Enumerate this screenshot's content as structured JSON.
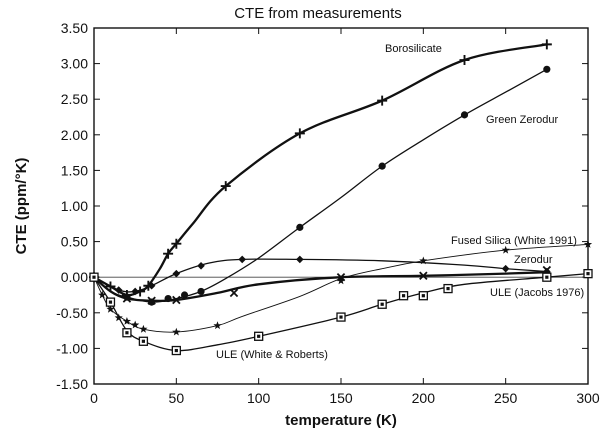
{
  "chart_data": {
    "type": "line",
    "title": "CTE from measurements",
    "xlabel": "temperature (K)",
    "ylabel": "CTE  (ppm/°K)",
    "xlim": [
      0,
      300
    ],
    "ylim": [
      -1.5,
      3.5
    ],
    "xticks": [
      0,
      50,
      100,
      150,
      200,
      250,
      300
    ],
    "xtick_labels": [
      "0",
      "50",
      "100",
      "150",
      "200",
      "250",
      "300"
    ],
    "yticks": [
      -1.5,
      -1.0,
      -0.5,
      0.0,
      0.5,
      1.0,
      1.5,
      2.0,
      2.5,
      3.0,
      3.5
    ],
    "ytick_labels": [
      "-1.50",
      "-1.00",
      "-0.50",
      "0.00",
      "0.50",
      "1.00",
      "1.50",
      "2.00",
      "2.50",
      "3.00",
      "3.50"
    ],
    "grid": false,
    "legend": "none",
    "series": [
      {
        "name": "Borosilicate",
        "label": "Borosilicate",
        "marker": "plus",
        "color": "#111111",
        "weight": "heavy",
        "points": [
          [
            0,
            0.0
          ],
          [
            10,
            -0.13
          ],
          [
            20,
            -0.25
          ],
          [
            28,
            -0.2
          ],
          [
            33,
            -0.12
          ],
          [
            40,
            0.12
          ],
          [
            45,
            0.33
          ],
          [
            50,
            0.47
          ],
          [
            60,
            0.75
          ],
          [
            80,
            1.28
          ],
          [
            125,
            2.02
          ],
          [
            175,
            2.48
          ],
          [
            225,
            3.05
          ],
          [
            275,
            3.27
          ]
        ],
        "markers": [
          [
            0,
            0.0
          ],
          [
            10,
            -0.13
          ],
          [
            20,
            -0.25
          ],
          [
            28,
            -0.2
          ],
          [
            33,
            -0.12
          ],
          [
            45,
            0.33
          ],
          [
            50,
            0.47
          ],
          [
            80,
            1.28
          ],
          [
            125,
            2.02
          ],
          [
            175,
            2.48
          ],
          [
            225,
            3.05
          ],
          [
            275,
            3.27
          ]
        ]
      },
      {
        "name": "Green Zerodur",
        "label": "Green Zerodur",
        "marker": "circle",
        "color": "#111111",
        "weight": "normal",
        "points": [
          [
            0,
            0.0
          ],
          [
            10,
            -0.2
          ],
          [
            20,
            -0.28
          ],
          [
            35,
            -0.35
          ],
          [
            50,
            -0.3
          ],
          [
            65,
            -0.2
          ],
          [
            80,
            -0.02
          ],
          [
            100,
            0.27
          ],
          [
            125,
            0.7
          ],
          [
            150,
            1.12
          ],
          [
            175,
            1.56
          ],
          [
            200,
            1.93
          ],
          [
            225,
            2.28
          ],
          [
            250,
            2.6
          ],
          [
            275,
            2.92
          ]
        ],
        "markers": [
          [
            0,
            0.0
          ],
          [
            20,
            -0.28
          ],
          [
            35,
            -0.35
          ],
          [
            45,
            -0.3
          ],
          [
            55,
            -0.25
          ],
          [
            65,
            -0.2
          ],
          [
            125,
            0.7
          ],
          [
            175,
            1.56
          ],
          [
            225,
            2.28
          ],
          [
            275,
            2.92
          ]
        ]
      },
      {
        "name": "Fused Silica (White 1991)",
        "label": "Fused Silica (White 1991)",
        "marker": "star",
        "color": "#111111",
        "weight": "thin",
        "points": [
          [
            0,
            0.0
          ],
          [
            5,
            -0.25
          ],
          [
            10,
            -0.45
          ],
          [
            20,
            -0.62
          ],
          [
            30,
            -0.73
          ],
          [
            50,
            -0.77
          ],
          [
            75,
            -0.68
          ],
          [
            90,
            -0.55
          ],
          [
            125,
            -0.27
          ],
          [
            150,
            -0.02
          ],
          [
            175,
            0.12
          ],
          [
            200,
            0.23
          ],
          [
            250,
            0.38
          ],
          [
            300,
            0.46
          ]
        ],
        "markers": [
          [
            5,
            -0.25
          ],
          [
            10,
            -0.45
          ],
          [
            15,
            -0.57
          ],
          [
            20,
            -0.62
          ],
          [
            25,
            -0.67
          ],
          [
            30,
            -0.73
          ],
          [
            50,
            -0.77
          ],
          [
            75,
            -0.68
          ],
          [
            150,
            -0.05
          ],
          [
            200,
            0.23
          ],
          [
            250,
            0.38
          ],
          [
            300,
            0.46
          ]
        ]
      },
      {
        "name": "Zerodur",
        "label": "Zerodur",
        "marker": "diamond",
        "color": "#111111",
        "weight": "normal",
        "points": [
          [
            0,
            0.0
          ],
          [
            15,
            -0.18
          ],
          [
            25,
            -0.2
          ],
          [
            35,
            -0.12
          ],
          [
            50,
            0.05
          ],
          [
            70,
            0.2
          ],
          [
            90,
            0.25
          ],
          [
            125,
            0.25
          ],
          [
            175,
            0.23
          ],
          [
            225,
            0.17
          ],
          [
            250,
            0.12
          ],
          [
            275,
            0.08
          ]
        ],
        "markers": [
          [
            15,
            -0.18
          ],
          [
            25,
            -0.2
          ],
          [
            35,
            -0.12
          ],
          [
            50,
            0.05
          ],
          [
            65,
            0.16
          ],
          [
            90,
            0.25
          ],
          [
            125,
            0.25
          ],
          [
            250,
            0.12
          ],
          [
            275,
            0.08
          ]
        ]
      },
      {
        "name": "ULE (Jacobs 1976)",
        "label": "ULE (Jacobs 1976)",
        "marker": "cross",
        "color": "#111111",
        "weight": "heavy",
        "points": [
          [
            0,
            0.0
          ],
          [
            10,
            -0.2
          ],
          [
            20,
            -0.3
          ],
          [
            35,
            -0.33
          ],
          [
            50,
            -0.32
          ],
          [
            75,
            -0.22
          ],
          [
            100,
            -0.1
          ],
          [
            150,
            0.0
          ],
          [
            200,
            0.02
          ],
          [
            250,
            0.05
          ],
          [
            275,
            0.07
          ]
        ],
        "markers": [
          [
            20,
            -0.3
          ],
          [
            35,
            -0.33
          ],
          [
            50,
            -0.32
          ],
          [
            85,
            -0.22
          ],
          [
            150,
            0.0
          ],
          [
            200,
            0.02
          ],
          [
            275,
            0.1
          ]
        ]
      },
      {
        "name": "ULE (White & Roberts)",
        "label": "ULE (White & Roberts)",
        "marker": "square",
        "color": "#111111",
        "weight": "normal",
        "points": [
          [
            0,
            0.0
          ],
          [
            10,
            -0.35
          ],
          [
            20,
            -0.75
          ],
          [
            30,
            -0.9
          ],
          [
            50,
            -1.03
          ],
          [
            75,
            -0.95
          ],
          [
            100,
            -0.83
          ],
          [
            150,
            -0.56
          ],
          [
            175,
            -0.38
          ],
          [
            200,
            -0.22
          ],
          [
            225,
            -0.1
          ],
          [
            275,
            0.0
          ],
          [
            300,
            0.05
          ]
        ],
        "markers": [
          [
            0,
            0.0
          ],
          [
            10,
            -0.35
          ],
          [
            20,
            -0.78
          ],
          [
            30,
            -0.9
          ],
          [
            50,
            -1.03
          ],
          [
            100,
            -0.83
          ],
          [
            150,
            -0.56
          ],
          [
            175,
            -0.38
          ],
          [
            188,
            -0.26
          ],
          [
            200,
            -0.26
          ],
          [
            215,
            -0.16
          ],
          [
            275,
            0.0
          ],
          [
            300,
            0.05
          ]
        ]
      }
    ],
    "reference_line": {
      "name": "zero",
      "points": [
        [
          0,
          0.0
        ],
        [
          300,
          0.0
        ]
      ]
    }
  }
}
